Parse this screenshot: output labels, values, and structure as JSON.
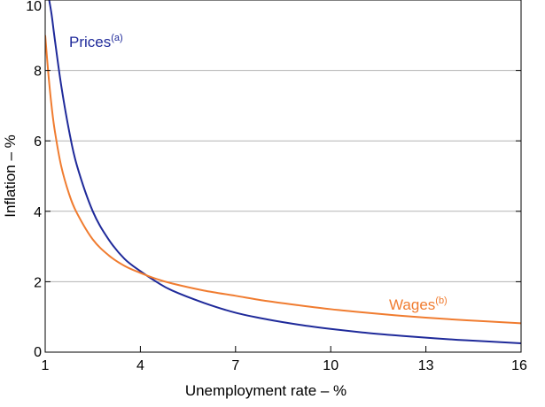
{
  "chart_data": {
    "type": "line",
    "xlabel": "Unemployment rate – %",
    "ylabel": "Inflation – %",
    "xlim": [
      1,
      16
    ],
    "ylim": [
      0,
      10
    ],
    "xticks": [
      "1",
      "4",
      "7",
      "10",
      "13",
      "16"
    ],
    "yticks": [
      "0",
      "2",
      "4",
      "6",
      "8",
      "10"
    ],
    "grid": "horizontal",
    "series": [
      {
        "name": "Prices",
        "superscript": "(a)",
        "color": "#1f2a9a",
        "x": [
          1.1,
          1.2,
          1.3,
          1.5,
          1.75,
          2,
          2.5,
          3,
          3.5,
          4,
          4.5,
          5,
          6,
          7,
          8,
          9,
          10,
          11,
          12,
          13,
          14,
          15,
          16
        ],
        "y": [
          10.3,
          9.6,
          8.9,
          7.6,
          6.3,
          5.3,
          4.0,
          3.2,
          2.65,
          2.3,
          2.0,
          1.75,
          1.4,
          1.12,
          0.93,
          0.78,
          0.66,
          0.56,
          0.48,
          0.41,
          0.35,
          0.3,
          0.25
        ]
      },
      {
        "name": "Wages",
        "superscript": "(b)",
        "color": "#f07c30",
        "x": [
          1,
          1.1,
          1.2,
          1.3,
          1.5,
          1.75,
          2,
          2.5,
          3,
          3.5,
          4,
          4.5,
          5,
          6,
          7,
          8,
          9,
          10,
          11,
          12,
          13,
          14,
          15,
          16
        ],
        "y": [
          9.0,
          7.9,
          7.0,
          6.3,
          5.3,
          4.5,
          3.95,
          3.2,
          2.75,
          2.45,
          2.25,
          2.08,
          1.95,
          1.75,
          1.6,
          1.45,
          1.33,
          1.22,
          1.13,
          1.05,
          0.98,
          0.92,
          0.87,
          0.82
        ]
      }
    ]
  }
}
